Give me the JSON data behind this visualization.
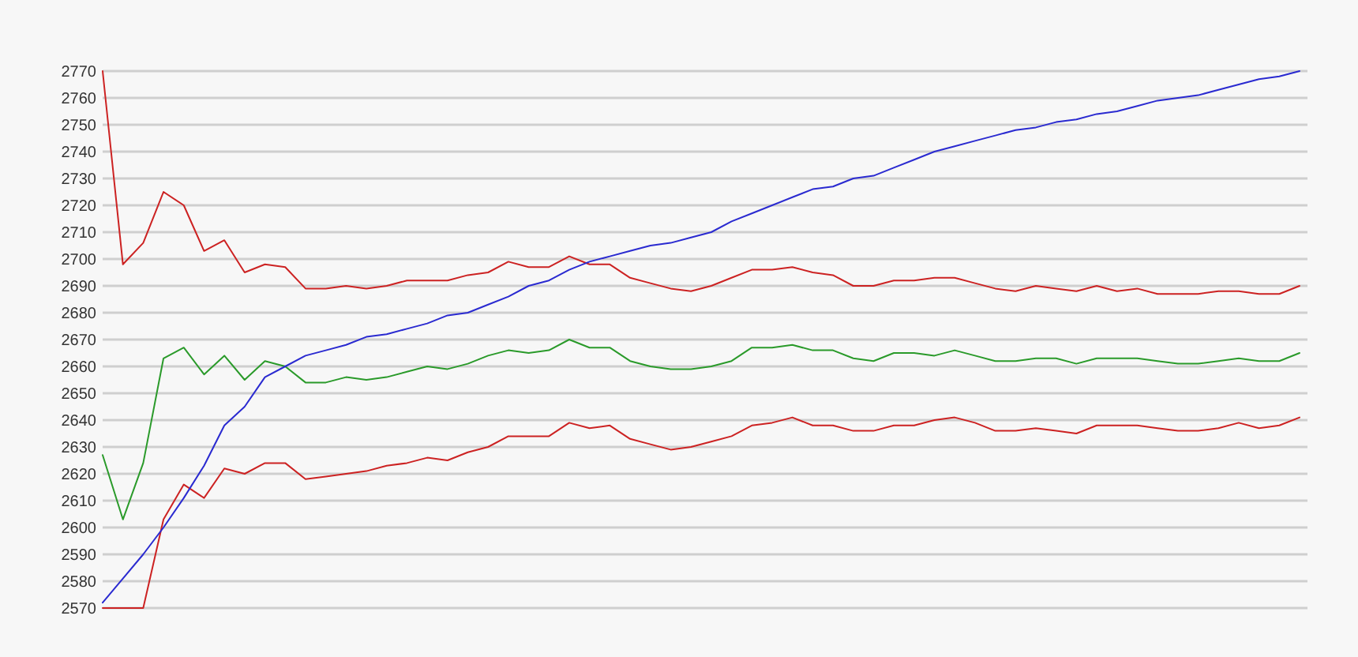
{
  "chart_data": {
    "type": "line",
    "categories": [
      null,
      null,
      null,
      null,
      null,
      null,
      null,
      null,
      null,
      null,
      null,
      null,
      null,
      null,
      null,
      null,
      null,
      null,
      null,
      null,
      null,
      null,
      null,
      null,
      null,
      null,
      null,
      null,
      null,
      null,
      null,
      null,
      null,
      null,
      null,
      null,
      null,
      null,
      null,
      null,
      null,
      null,
      null,
      null,
      null,
      null,
      null,
      null,
      null,
      null,
      null,
      null,
      null,
      null,
      null,
      null,
      null,
      null,
      null,
      null
    ],
    "ylim": [
      2570,
      2770
    ],
    "yticks": [
      2570,
      2580,
      2590,
      2600,
      2610,
      2620,
      2630,
      2640,
      2650,
      2660,
      2670,
      2680,
      2690,
      2700,
      2710,
      2720,
      2730,
      2740,
      2750,
      2760,
      2770
    ],
    "grid": "y",
    "tick_labels": "y",
    "marker": "none",
    "line_style": "solid",
    "series": [
      {
        "color": "#cc2222",
        "values": [
          2770,
          2698,
          2706,
          2725,
          2720,
          2703,
          2707,
          2695,
          2698,
          2697,
          2689,
          2689,
          2690,
          2689,
          2690,
          2692,
          2692,
          2692,
          2694,
          2695,
          2699,
          2697,
          2697,
          2701,
          2698,
          2698,
          2693,
          2691,
          2689,
          2688,
          2690,
          2693,
          2696,
          2696,
          2697,
          2695,
          2694,
          2690,
          2690,
          2692,
          2692,
          2693,
          2693,
          2691,
          2689,
          2688,
          2690,
          2689,
          2688,
          2690,
          2688,
          2689,
          2687,
          2687,
          2687,
          2688,
          2688,
          2687,
          2687,
          2690
        ]
      },
      {
        "color": "#2a9a2a",
        "values": [
          2627,
          2603,
          2624,
          2663,
          2667,
          2657,
          2664,
          2655,
          2662,
          2660,
          2654,
          2654,
          2656,
          2655,
          2656,
          2658,
          2660,
          2659,
          2661,
          2664,
          2666,
          2665,
          2666,
          2670,
          2667,
          2667,
          2662,
          2660,
          2659,
          2659,
          2660,
          2662,
          2667,
          2667,
          2668,
          2666,
          2666,
          2663,
          2662,
          2665,
          2665,
          2664,
          2666,
          2664,
          2662,
          2662,
          2663,
          2663,
          2661,
          2663,
          2663,
          2663,
          2662,
          2661,
          2661,
          2662,
          2663,
          2662,
          2662,
          2665
        ]
      },
      {
        "color": "#cc2222",
        "values": [
          2570,
          2570,
          2570,
          2603,
          2616,
          2611,
          2622,
          2620,
          2624,
          2624,
          2618,
          2619,
          2620,
          2621,
          2623,
          2624,
          2626,
          2625,
          2628,
          2630,
          2634,
          2634,
          2634,
          2639,
          2637,
          2638,
          2633,
          2631,
          2629,
          2630,
          2632,
          2634,
          2638,
          2639,
          2641,
          2638,
          2638,
          2636,
          2636,
          2638,
          2638,
          2640,
          2641,
          2639,
          2636,
          2636,
          2637,
          2636,
          2635,
          2638,
          2638,
          2638,
          2637,
          2636,
          2636,
          2637,
          2639,
          2637,
          2638,
          2641
        ]
      },
      {
        "color": "#2a2ad0",
        "values": [
          2572,
          2581,
          2590,
          2600,
          2611,
          2623,
          2638,
          2645,
          2656,
          2660,
          2664,
          2666,
          2668,
          2671,
          2672,
          2674,
          2676,
          2679,
          2680,
          2683,
          2686,
          2690,
          2692,
          2696,
          2699,
          2701,
          2703,
          2705,
          2706,
          2708,
          2710,
          2714,
          2717,
          2720,
          2723,
          2726,
          2727,
          2730,
          2731,
          2734,
          2737,
          2740,
          2742,
          2744,
          2746,
          2748,
          2749,
          2751,
          2752,
          2754,
          2755,
          2757,
          2759,
          2760,
          2761,
          2763,
          2765,
          2767,
          2768,
          2770
        ]
      }
    ]
  }
}
